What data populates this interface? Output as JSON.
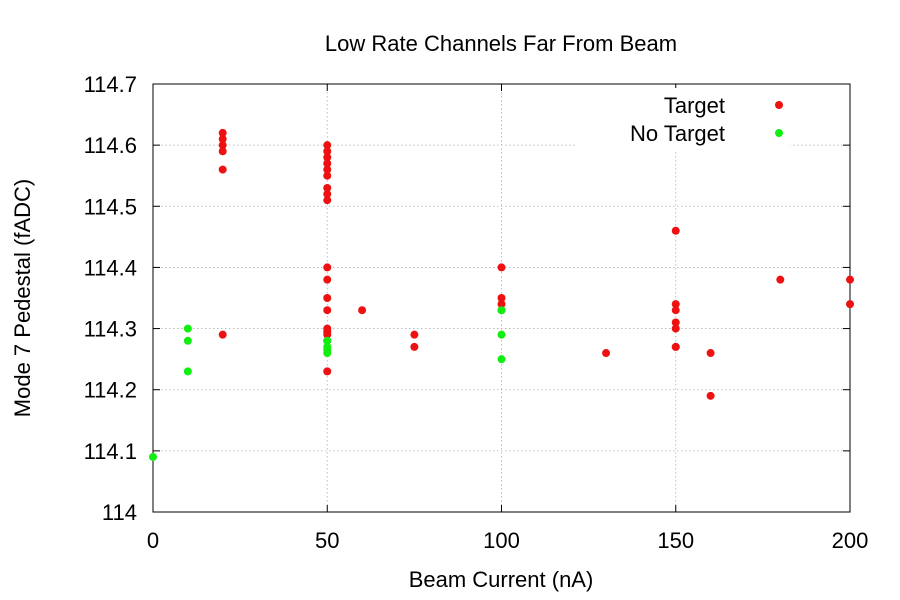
{
  "chart_data": {
    "type": "scatter",
    "title": "Low Rate Channels Far From Beam",
    "xlabel": "Beam Current (nA)",
    "ylabel": "Mode 7 Pedestal (fADC)",
    "xlim": [
      0,
      200
    ],
    "ylim": [
      114.0,
      114.7
    ],
    "xticks": [
      0,
      50,
      100,
      150,
      200
    ],
    "xtick_labels": [
      "0",
      "50",
      "100",
      "150",
      "200"
    ],
    "yticks": [
      114.0,
      114.1,
      114.2,
      114.3,
      114.4,
      114.5,
      114.6,
      114.7
    ],
    "ytick_labels": [
      "114",
      "114.1",
      "114.2",
      "114.3",
      "114.4",
      "114.5",
      "114.6",
      "114.7"
    ],
    "grid": true,
    "legend_position": "top-right",
    "series": [
      {
        "name": "Target",
        "color": "#ee1111",
        "x": [
          20,
          20,
          20,
          20,
          20,
          20,
          50,
          50,
          50,
          50,
          50,
          50,
          50,
          50,
          50,
          50,
          50,
          50,
          50,
          50,
          50,
          50,
          50,
          50,
          60,
          75,
          75,
          100,
          100,
          100,
          100,
          130,
          150,
          150,
          150,
          150,
          150,
          150,
          150,
          160,
          160,
          180,
          200,
          200
        ],
        "y": [
          114.62,
          114.61,
          114.6,
          114.59,
          114.56,
          114.29,
          114.6,
          114.59,
          114.58,
          114.57,
          114.56,
          114.55,
          114.53,
          114.52,
          114.51,
          114.4,
          114.38,
          114.35,
          114.33,
          114.3,
          114.295,
          114.29,
          114.28,
          114.23,
          114.33,
          114.29,
          114.27,
          114.4,
          114.35,
          114.34,
          114.33,
          114.26,
          114.46,
          114.34,
          114.33,
          114.31,
          114.3,
          114.27,
          114.27,
          114.26,
          114.19,
          114.38,
          114.38,
          114.34
        ]
      },
      {
        "name": "No Target",
        "color": "#11ee11",
        "x": [
          0,
          10,
          10,
          10,
          50,
          50,
          50,
          50,
          100,
          100,
          100
        ],
        "y": [
          114.09,
          114.3,
          114.28,
          114.23,
          114.28,
          114.27,
          114.265,
          114.26,
          114.33,
          114.29,
          114.25
        ]
      }
    ]
  }
}
